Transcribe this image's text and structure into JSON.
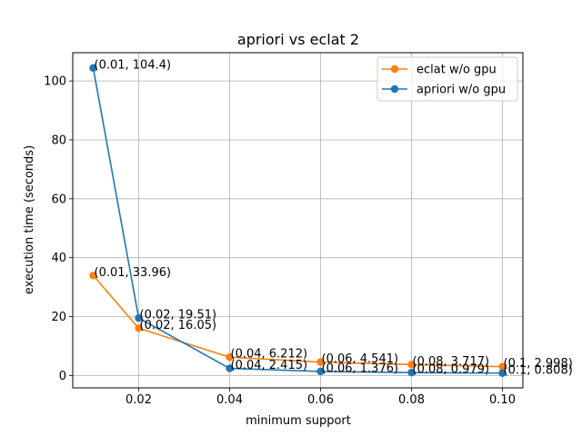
{
  "chart_data": {
    "type": "line",
    "title": "apriori vs eclat 2",
    "xlabel": "minimum support",
    "ylabel": "execution time (seconds)",
    "xlim": [
      0.0055,
      0.1045
    ],
    "ylim": [
      -4.2,
      109.6
    ],
    "xticks": [
      0.02,
      0.04,
      0.06,
      0.08,
      0.1
    ],
    "xtick_labels": [
      "0.02",
      "0.04",
      "0.06",
      "0.08",
      "0.10"
    ],
    "yticks": [
      0,
      20,
      40,
      60,
      80,
      100
    ],
    "ytick_labels": [
      "0",
      "20",
      "40",
      "60",
      "80",
      "100"
    ],
    "grid": true,
    "legend_position": "top-right",
    "series": [
      {
        "name": "eclat w/o gpu",
        "color": "#ff7f0e",
        "x": [
          0.01,
          0.02,
          0.04,
          0.06,
          0.08,
          0.1
        ],
        "y": [
          33.96,
          16.05,
          6.212,
          4.541,
          3.717,
          2.998
        ],
        "labels": [
          "(0.01, 33.96)",
          "(0.02, 16.05)",
          "(0.04, 6.212)",
          "(0.06, 4.541)",
          "(0.08, 3.717)",
          "(0.1, 2.998)"
        ]
      },
      {
        "name": "apriori w/o gpu",
        "color": "#1f77b4",
        "x": [
          0.01,
          0.02,
          0.04,
          0.06,
          0.08,
          0.1
        ],
        "y": [
          104.4,
          19.51,
          2.415,
          1.376,
          0.979,
          0.808
        ],
        "labels": [
          "(0.01, 104.4)",
          "(0.02, 19.51)",
          "(0.04, 2.415)",
          "(0.06, 1.376)",
          "(0.08, 0.979)",
          "(0.1, 0.808)"
        ]
      }
    ]
  }
}
